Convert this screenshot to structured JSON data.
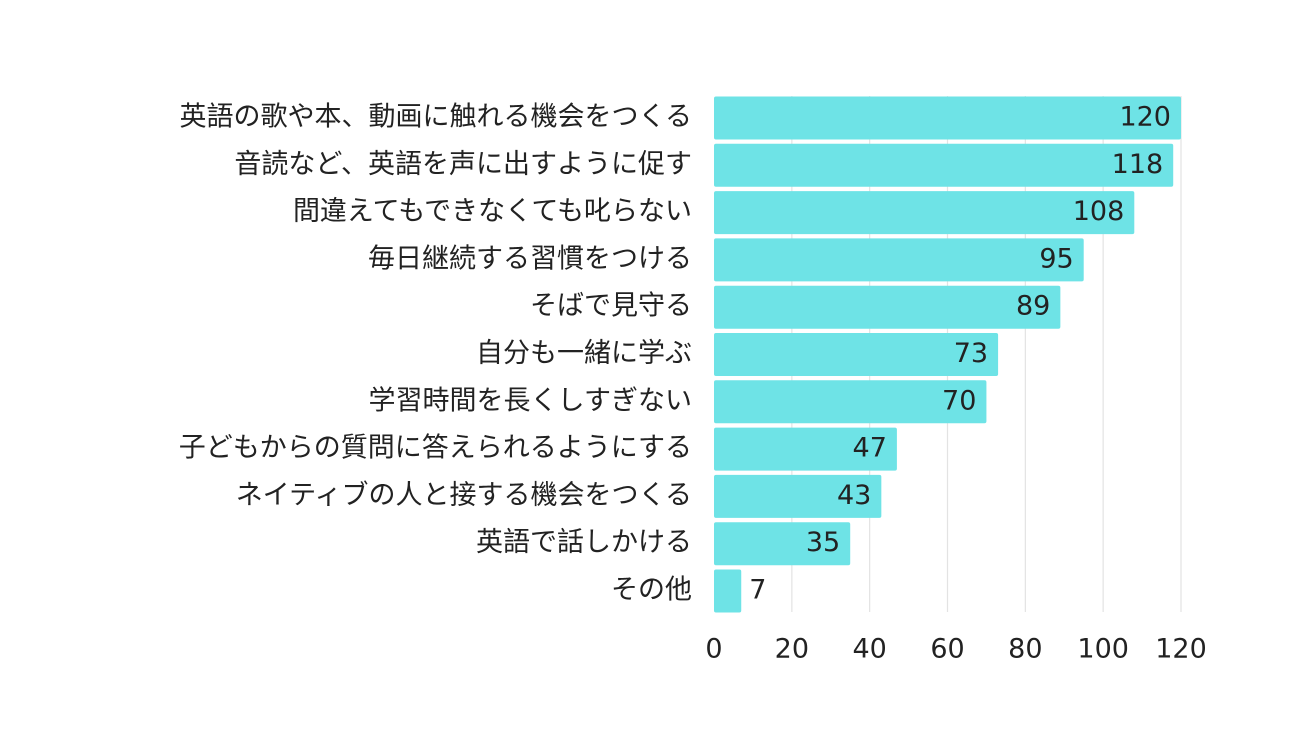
{
  "colors": {
    "bar": "#6ee3e6",
    "grid": "#e3e3e3",
    "text": "#222222"
  },
  "chart_data": {
    "type": "bar",
    "orientation": "horizontal",
    "title": "",
    "xlabel": "",
    "ylabel": "",
    "categories": [
      "英語の歌や本、動画に触れる機会をつくる",
      "音読など、英語を声に出すように促す",
      "間違えてもできなくても叱らない",
      "毎日継続する習慣をつける",
      "そばで見守る",
      "自分も一緒に学ぶ",
      "学習時間を長くしすぎない",
      "子どもからの質問に答えられるようにする",
      "ネイティブの人と接する機会をつくる",
      "英語で話しかける",
      "その他"
    ],
    "values": [
      120,
      118,
      108,
      95,
      89,
      73,
      70,
      47,
      43,
      35,
      7
    ],
    "xlim": [
      0,
      120
    ],
    "xticks": [
      0,
      20,
      40,
      60,
      80,
      100,
      120
    ],
    "grid": true,
    "legend": "none",
    "data_labels": true
  }
}
